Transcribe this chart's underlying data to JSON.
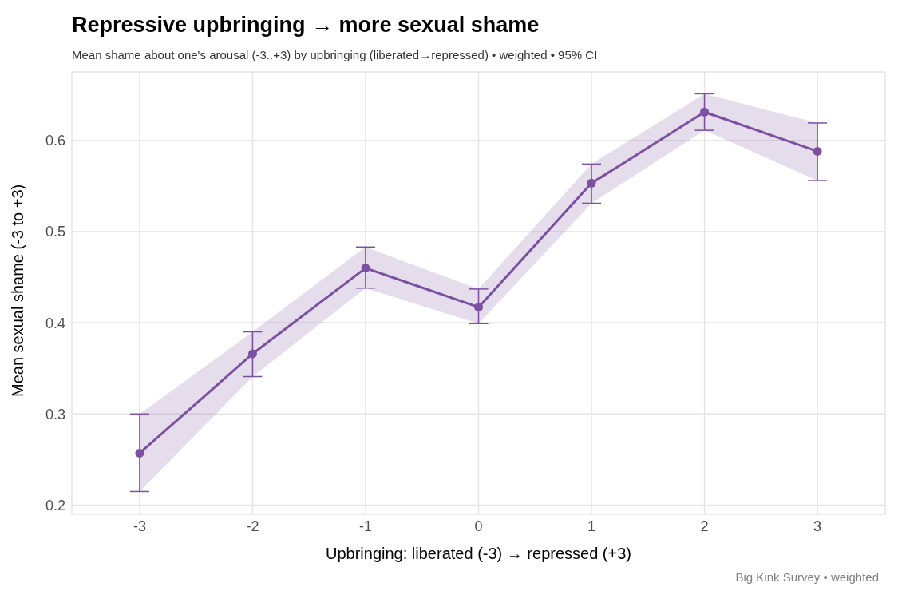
{
  "chart_data": {
    "type": "line",
    "title": "Repressive upbringing → more sexual shame",
    "subtitle": "Mean shame about one's arousal (-3..+3) by upbringing (liberated→repressed)  •  weighted  •  95% CI",
    "xlabel": "Upbringing: liberated (-3) → repressed (+3)",
    "ylabel": "Mean sexual shame (-3 to +3)",
    "annotations": [
      "Big Kink Survey  •  weighted"
    ],
    "x": [
      -3,
      -2,
      -1,
      0,
      1,
      2,
      3
    ],
    "series": [
      {
        "color": "#7b4fa2",
        "values": [
          0.257,
          0.366,
          0.46,
          0.417,
          0.553,
          0.631,
          0.588
        ],
        "errors": [
          [
            0.215,
            0.3
          ],
          [
            0.341,
            0.39
          ],
          [
            0.438,
            0.483
          ],
          [
            0.399,
            0.437
          ],
          [
            0.531,
            0.574
          ],
          [
            0.611,
            0.651
          ],
          [
            0.556,
            0.619
          ]
        ],
        "lower": [
          0.215,
          0.341,
          0.438,
          0.399,
          0.531,
          0.611,
          0.556
        ],
        "upper": [
          0.3,
          0.39,
          0.483,
          0.437,
          0.574,
          0.651,
          0.619
        ]
      }
    ],
    "xlim": [
      -3.6,
      3.6
    ],
    "xticks": [
      -3,
      -2,
      -1,
      0,
      1,
      2,
      3
    ],
    "ylim": [
      0.19,
      0.675
    ],
    "yticks": [
      0.2,
      0.3,
      0.4,
      0.5,
      0.6
    ],
    "grid": true,
    "marker": "circle",
    "line_style": "solid",
    "legend": false
  }
}
